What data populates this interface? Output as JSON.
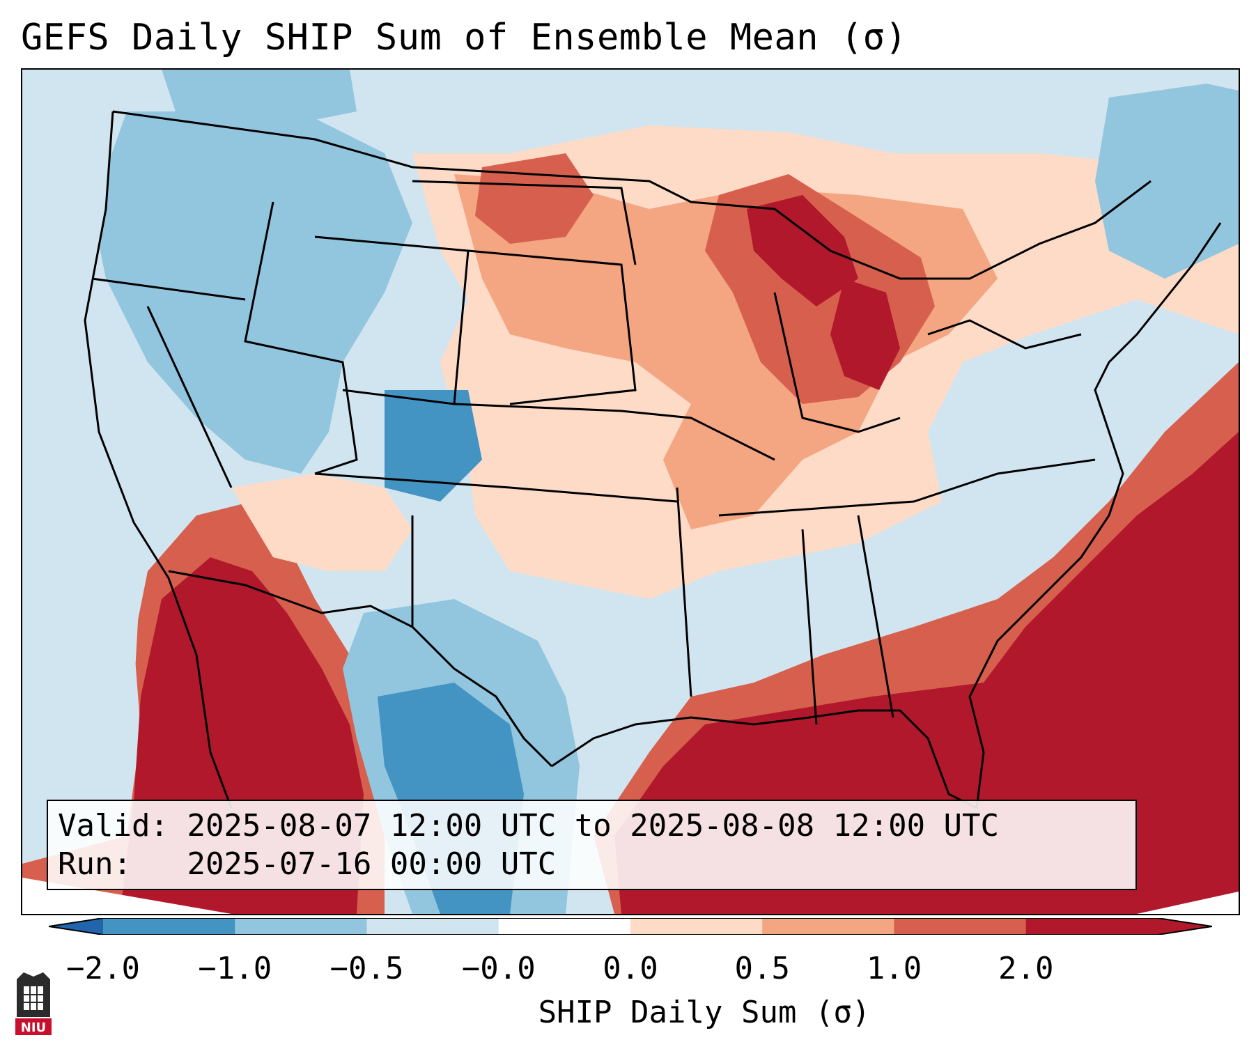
{
  "title": "GEFS Daily SHIP Sum of Ensemble Mean (σ)",
  "info": {
    "valid_label": "Valid:",
    "valid_value": "2025-08-07 12:00 UTC to 2025-08-08 12:00 UTC",
    "run_label": "Run:",
    "run_value": "2025-07-16 00:00 UTC"
  },
  "colorbar": {
    "label": "SHIP Daily Sum (σ)",
    "ticks": [
      "−2.0",
      "−1.0",
      "−0.5",
      "−0.0",
      "0.0",
      "0.5",
      "1.0",
      "2.0"
    ],
    "colors": [
      "#4393c3",
      "#92c5de",
      "#d1e5f0",
      "#ffffff",
      "#fddbc7",
      "#f4a582",
      "#d6604d",
      "#b2182b"
    ],
    "extend_low_color": "#2166ac",
    "extend_high_color": "#b2182b"
  },
  "logo_text": "NIU",
  "palette": {
    "strong_neg": "#4393c3",
    "neg": "#92c5de",
    "weak_neg": "#d1e5f0",
    "weak_pos": "#fddbc7",
    "pos": "#f4a582",
    "mid_pos": "#d6604d",
    "strong_pos": "#b2182b"
  }
}
